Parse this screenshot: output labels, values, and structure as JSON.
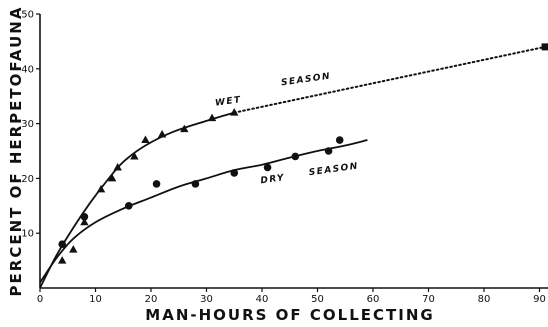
{
  "chart_data": {
    "type": "scatter",
    "xlabel": "MAN-HOURS OF COLLECTING",
    "ylabel": "PERCENT OF HERPETOFAUNA",
    "xlim": [
      0,
      92
    ],
    "ylim": [
      0,
      50
    ],
    "x_ticks": [
      "0",
      "10",
      "20",
      "30",
      "40",
      "50",
      "60",
      "70",
      "80",
      "90"
    ],
    "y_ticks": [
      "10",
      "20",
      "30",
      "40",
      "50"
    ],
    "series": [
      {
        "name": "WET SEASON",
        "marker": "triangle",
        "points": [
          [
            4,
            5
          ],
          [
            6,
            7
          ],
          [
            8,
            12
          ],
          [
            11,
            18
          ],
          [
            13,
            20
          ],
          [
            14,
            22
          ],
          [
            17,
            24
          ],
          [
            19,
            27
          ],
          [
            22,
            28
          ],
          [
            26,
            29
          ],
          [
            31,
            31
          ],
          [
            35,
            32
          ]
        ],
        "curve": [
          [
            0,
            0
          ],
          [
            3,
            6
          ],
          [
            6,
            11
          ],
          [
            9,
            15.5
          ],
          [
            12,
            19.5
          ],
          [
            15,
            23
          ],
          [
            19,
            26
          ],
          [
            24,
            28.5
          ],
          [
            30,
            30.5
          ],
          [
            35,
            32
          ]
        ],
        "extrapolation": [
          [
            35,
            32
          ],
          [
            91,
            44
          ]
        ],
        "extrapolation_point": [
          91,
          44
        ]
      },
      {
        "name": "DRY SEASON",
        "marker": "circle",
        "points": [
          [
            4,
            8
          ],
          [
            8,
            13
          ],
          [
            16,
            15
          ],
          [
            21,
            19
          ],
          [
            28,
            19
          ],
          [
            35,
            21
          ],
          [
            41,
            22
          ],
          [
            46,
            24
          ],
          [
            52,
            25
          ],
          [
            54,
            27
          ]
        ],
        "curve": [
          [
            0,
            1
          ],
          [
            3,
            5.5
          ],
          [
            6,
            9
          ],
          [
            10,
            12
          ],
          [
            15,
            14.5
          ],
          [
            20,
            16.5
          ],
          [
            25,
            18.5
          ],
          [
            30,
            20
          ],
          [
            35,
            21.5
          ],
          [
            40,
            22.5
          ],
          [
            45,
            23.8
          ],
          [
            50,
            25
          ],
          [
            55,
            26
          ],
          [
            59,
            27
          ]
        ]
      }
    ],
    "annotations": [
      {
        "text": "WET",
        "x": 34,
        "y": 33.6
      },
      {
        "text": "SEASON",
        "x": 48,
        "y": 37.6
      },
      {
        "text": "DRY",
        "x": 42,
        "y": 19.4
      },
      {
        "text": "SEASON",
        "x": 53,
        "y": 21.2
      }
    ]
  }
}
